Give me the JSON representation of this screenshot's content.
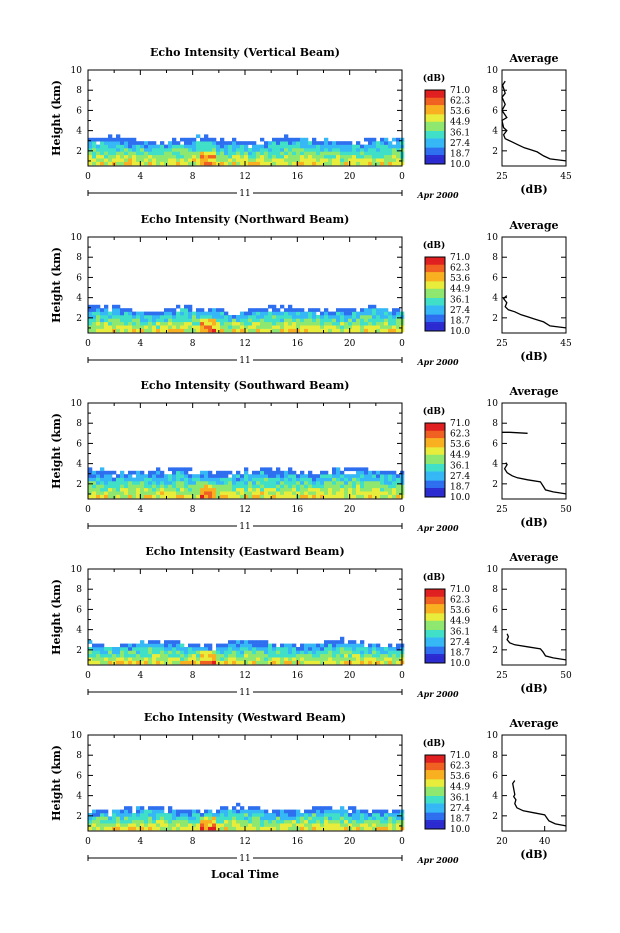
{
  "colorbar": {
    "unit": "(dB)",
    "labels": [
      "71.0",
      "62.3",
      "53.6",
      "44.9",
      "36.1",
      "27.4",
      "18.7",
      "10.0"
    ],
    "range": [
      10.0,
      71.0
    ],
    "colors": [
      "#2b2bd0",
      "#2e6ff0",
      "#35b8f5",
      "#40e0c8",
      "#8ee870",
      "#e8ec3a",
      "#f8b020",
      "#f06020",
      "#e02020"
    ]
  },
  "shared_labels": {
    "height_ylabel": "Height (km)",
    "x_ticks": [
      "0",
      "4",
      "8",
      "12",
      "16",
      "20",
      "0"
    ],
    "y_ticks": [
      "2",
      "4",
      "6",
      "8",
      "10"
    ],
    "date_day": "11",
    "date_month_year": "Apr 2000",
    "xlabel": "Local Time",
    "avg_title": "Average",
    "avg_xlabel": "(dB)"
  },
  "chart_data": [
    {
      "type": "heatmap",
      "title": "Echo Intensity (Vertical Beam)",
      "x_range_hours": [
        0,
        24
      ],
      "y_range_km": [
        0.5,
        10
      ],
      "echo_top_km": 3.0,
      "average_profile": {
        "type": "line",
        "xlim": [
          25,
          45
        ],
        "x_ticks": [
          "25",
          "45"
        ],
        "points": [
          [
            45,
            1.0
          ],
          [
            40,
            1.2
          ],
          [
            38,
            1.5
          ],
          [
            36,
            1.9
          ],
          [
            34,
            2.1
          ],
          [
            32,
            2.3
          ],
          [
            30,
            2.6
          ],
          [
            28,
            2.9
          ],
          [
            26,
            3.2
          ],
          [
            25.5,
            3.6
          ],
          [
            26.5,
            4.0
          ],
          [
            25.5,
            4.3
          ],
          [
            25.0,
            5.0
          ],
          [
            26.5,
            5.3
          ],
          [
            25.0,
            6.0
          ],
          [
            26.0,
            6.6
          ],
          [
            25.0,
            7.3
          ],
          [
            26.0,
            7.7
          ],
          [
            25.2,
            8.5
          ],
          [
            26.0,
            8.9
          ]
        ]
      }
    },
    {
      "type": "heatmap",
      "title": "Echo Intensity (Northward Beam)",
      "x_range_hours": [
        0,
        24
      ],
      "y_range_km": [
        0.5,
        10
      ],
      "echo_top_km": 2.8,
      "average_profile": {
        "type": "line",
        "xlim": [
          25,
          45
        ],
        "x_ticks": [
          "25",
          "45"
        ],
        "points": [
          [
            45,
            1.0
          ],
          [
            40,
            1.2
          ],
          [
            38,
            1.6
          ],
          [
            35,
            1.9
          ],
          [
            33,
            2.1
          ],
          [
            31,
            2.3
          ],
          [
            29,
            2.6
          ],
          [
            27,
            2.8
          ],
          [
            26,
            3.1
          ],
          [
            26.5,
            3.5
          ],
          [
            25.5,
            3.9
          ],
          [
            26.5,
            4.2
          ]
        ]
      }
    },
    {
      "type": "heatmap",
      "title": "Echo Intensity (Southward Beam)",
      "x_range_hours": [
        0,
        24
      ],
      "y_range_km": [
        0.5,
        10
      ],
      "echo_top_km": 3.2,
      "average_profile": {
        "type": "line",
        "xlim": [
          25,
          50
        ],
        "x_ticks": [
          "25",
          "50"
        ],
        "points": [
          [
            50,
            1.0
          ],
          [
            45,
            1.2
          ],
          [
            42,
            1.4
          ],
          [
            41,
            1.8
          ],
          [
            40,
            2.2
          ],
          [
            35,
            2.4
          ],
          [
            31,
            2.6
          ],
          [
            29,
            2.8
          ],
          [
            27,
            3.1
          ],
          [
            26,
            3.5
          ],
          [
            27,
            3.9
          ],
          [
            26.5,
            4.1
          ]
        ],
        "extra_points": [
          [
            25,
            7.1
          ],
          [
            28,
            7.1
          ],
          [
            35,
            7.0
          ],
          [
            25.5,
            6.6
          ],
          [
            26,
            7.3
          ]
        ]
      }
    },
    {
      "type": "heatmap",
      "title": "Echo Intensity (Eastward Beam)",
      "x_range_hours": [
        0,
        24
      ],
      "y_range_km": [
        0.5,
        10
      ],
      "echo_top_km": 2.6,
      "average_profile": {
        "type": "line",
        "xlim": [
          25,
          50
        ],
        "x_ticks": [
          "25",
          "50"
        ],
        "points": [
          [
            50,
            1.0
          ],
          [
            45,
            1.2
          ],
          [
            42,
            1.4
          ],
          [
            41,
            1.8
          ],
          [
            40,
            2.1
          ],
          [
            35,
            2.3
          ],
          [
            30,
            2.5
          ],
          [
            28,
            2.7
          ],
          [
            27,
            3.0
          ],
          [
            27.5,
            3.3
          ],
          [
            27,
            3.6
          ]
        ]
      }
    },
    {
      "type": "heatmap",
      "title": "Echo Intensity (Westward Beam)",
      "x_range_hours": [
        0,
        24
      ],
      "y_range_km": [
        0.5,
        10
      ],
      "echo_top_km": 2.6,
      "average_profile": {
        "type": "line",
        "xlim": [
          20,
          50
        ],
        "x_ticks": [
          "20",
          "40"
        ],
        "points": [
          [
            50,
            1.0
          ],
          [
            45,
            1.2
          ],
          [
            42,
            1.5
          ],
          [
            41,
            1.8
          ],
          [
            40,
            2.1
          ],
          [
            35,
            2.3
          ],
          [
            30,
            2.5
          ],
          [
            27,
            2.8
          ],
          [
            26,
            3.2
          ],
          [
            26.5,
            3.6
          ],
          [
            25.5,
            3.9
          ],
          [
            26,
            4.1
          ],
          [
            25,
            5.2
          ],
          [
            26,
            5.5
          ]
        ]
      }
    }
  ]
}
